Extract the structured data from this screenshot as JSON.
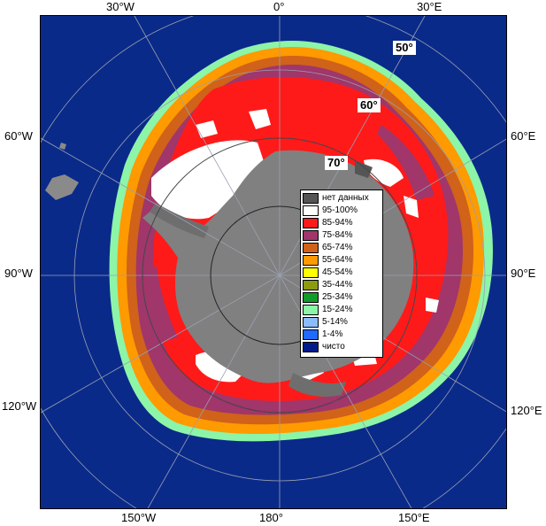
{
  "map": {
    "edge_labels": {
      "top": [
        "30°W",
        "0°",
        "30°E"
      ],
      "left": [
        "60°W",
        "90°W",
        "120°W"
      ],
      "right": [
        "60°E",
        "90°E",
        "120°E"
      ],
      "bottom": [
        "150°W",
        "180°",
        "150°E"
      ]
    },
    "lat_labels": [
      "50°",
      "60°",
      "70°"
    ],
    "colors": {
      "ocean": "#0a2a8a",
      "land": "#808080",
      "shelf": "#6e6e6e",
      "grid": "#9aa0b0"
    },
    "legend": [
      {
        "label": "нет данных",
        "color": "#555555"
      },
      {
        "label": "95-100%",
        "color": "#ffffff"
      },
      {
        "label": "85-94%",
        "color": "#ff1a1a"
      },
      {
        "label": "75-84%",
        "color": "#a0366a"
      },
      {
        "label": "65-74%",
        "color": "#d0621a"
      },
      {
        "label": "55-64%",
        "color": "#ff9a00"
      },
      {
        "label": "45-54%",
        "color": "#ffff00"
      },
      {
        "label": "35-44%",
        "color": "#8c9a10"
      },
      {
        "label": "25-34%",
        "color": "#129a2a"
      },
      {
        "label": "15-24%",
        "color": "#8cf5a8"
      },
      {
        "label": "5-14%",
        "color": "#8cbcff"
      },
      {
        "label": "1-4%",
        "color": "#1f6aff"
      },
      {
        "label": "чисто",
        "color": "#001a8a"
      }
    ]
  }
}
